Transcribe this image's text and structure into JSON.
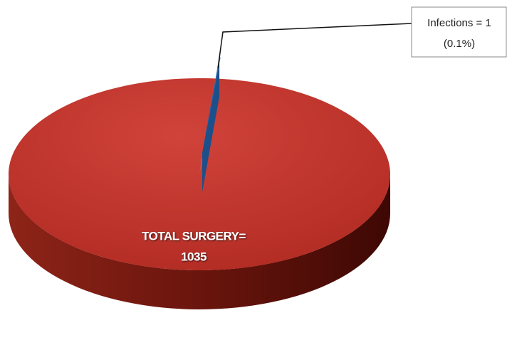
{
  "chart_data": {
    "type": "pie3d",
    "categories": [
      "TOTAL SURGERY=",
      "Infections = 1"
    ],
    "values": [
      1035,
      1
    ],
    "colors": [
      "#c0392b",
      "#2e6db4"
    ],
    "annotations": [
      "(0.1%)"
    ]
  }
}
